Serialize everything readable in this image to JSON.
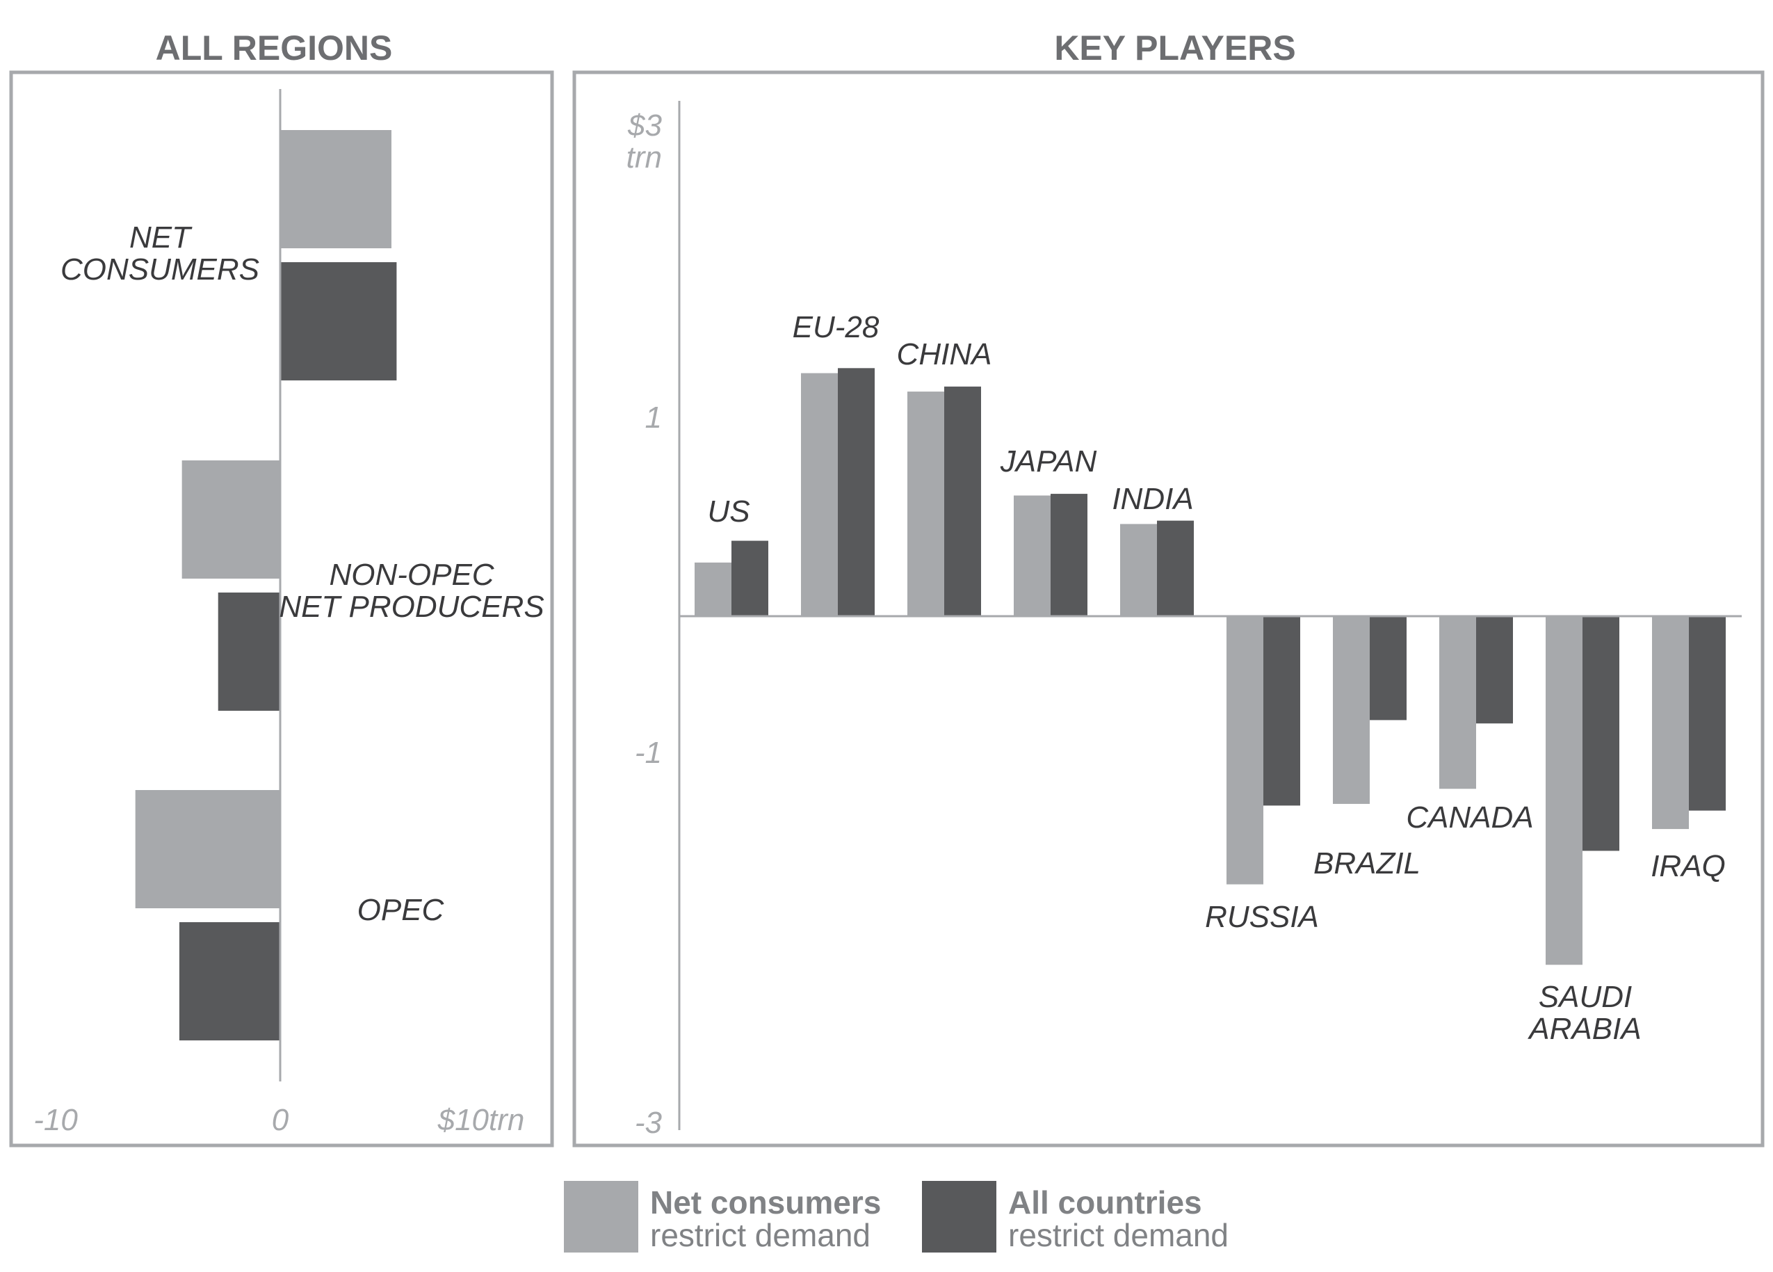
{
  "colors": {
    "series_light": "#a7a9ac",
    "series_dark": "#58595b",
    "frame": "#a7a9ac",
    "axis": "#a7a9ac",
    "title": "#6d6e71",
    "label": "#3a3a3c",
    "tick": "#a7a9ac",
    "legend_text": "#808285"
  },
  "legend": [
    {
      "main": "Net consumers",
      "sub": "restrict demand",
      "color_key": "series_light"
    },
    {
      "main": "All countries",
      "sub": "restrict demand",
      "color_key": "series_dark"
    }
  ],
  "chart_data": [
    {
      "id": "all_regions",
      "type": "bar",
      "orientation": "horizontal",
      "title": "ALL REGIONS",
      "unit": "$ trn",
      "xlim": [
        -10,
        10
      ],
      "tick_labels": [
        "-10",
        "0",
        "$10trn"
      ],
      "grid": false,
      "categories": [
        {
          "label_lines": [
            "NET",
            "CONSUMERS"
          ]
        },
        {
          "label_lines": [
            "NON-OPEC",
            "NET PRODUCERS"
          ]
        },
        {
          "label_lines": [
            "OPEC"
          ]
        }
      ],
      "series": [
        {
          "name": "Net consumers restrict demand",
          "values": [
            4.3,
            -3.8,
            -5.6
          ]
        },
        {
          "name": "All countries restrict demand",
          "values": [
            4.5,
            -2.4,
            -3.9
          ]
        }
      ]
    },
    {
      "id": "key_players",
      "type": "bar",
      "orientation": "vertical",
      "title": "KEY PLAYERS",
      "unit": "$ trn",
      "ylim": [
        -3,
        3
      ],
      "tick_labels": [
        {
          "value": 3,
          "lines": [
            "$3",
            "trn"
          ]
        },
        {
          "value": 1,
          "lines": [
            "1"
          ]
        },
        {
          "value": -1,
          "lines": [
            "-1"
          ]
        },
        {
          "value": -3,
          "lines": [
            "-3"
          ]
        }
      ],
      "grid": false,
      "categories": [
        {
          "label_lines": [
            "US"
          ]
        },
        {
          "label_lines": [
            "EU-28"
          ]
        },
        {
          "label_lines": [
            "CHINA"
          ]
        },
        {
          "label_lines": [
            "JAPAN"
          ]
        },
        {
          "label_lines": [
            "INDIA"
          ]
        },
        {
          "label_lines": [
            "RUSSIA"
          ]
        },
        {
          "label_lines": [
            "BRAZIL"
          ]
        },
        {
          "label_lines": [
            "CANADA"
          ]
        },
        {
          "label_lines": [
            "SAUDI",
            "ARABIA"
          ]
        },
        {
          "label_lines": [
            "IRAQ"
          ]
        }
      ],
      "series": [
        {
          "name": "Net consumers restrict demand",
          "values": [
            0.32,
            1.45,
            1.34,
            0.72,
            0.55,
            -1.6,
            -1.12,
            -1.03,
            -2.08,
            -1.27
          ]
        },
        {
          "name": "All countries restrict demand",
          "values": [
            0.45,
            1.48,
            1.37,
            0.73,
            0.57,
            -1.13,
            -0.62,
            -0.64,
            -1.4,
            -1.16
          ]
        }
      ]
    }
  ]
}
